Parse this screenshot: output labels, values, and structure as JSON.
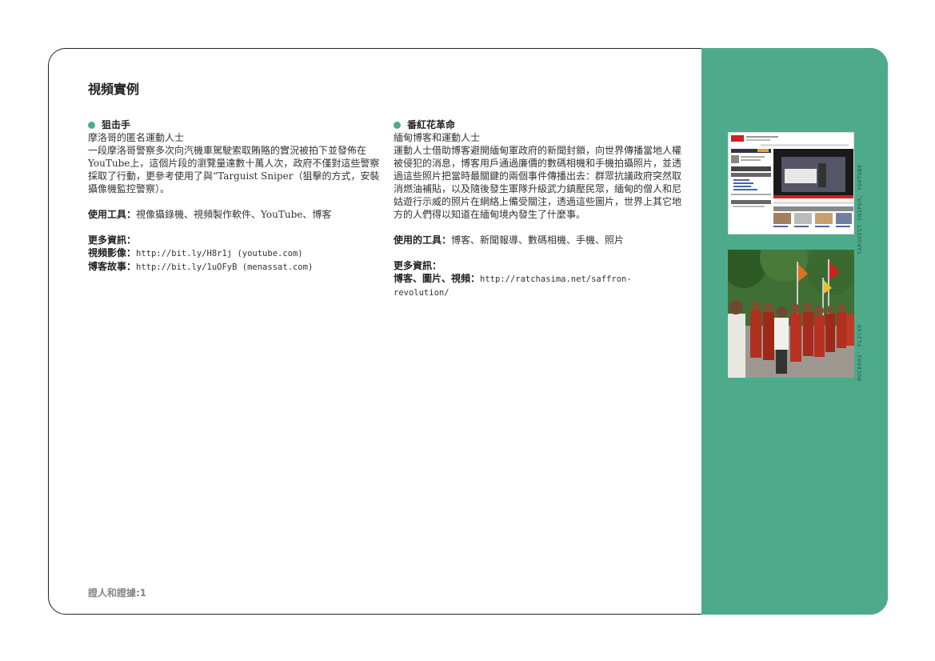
{
  "page": {
    "title": "視頻實例",
    "footer": "證人和證據:1"
  },
  "col1": {
    "heading": "狙击手",
    "subtitle": "摩洛哥的匿名運動人士",
    "body": "一段摩洛哥警察多次向汽機車駕駛索取賄賂的實況被拍下並發佈在YouTube上，這個片段的瀏覽量達數十萬人次，政府不僅對這些警察採取了行動，更參考使用了與“Targuist Sniper（狙擊的方式，安裝攝像機監控警察）。",
    "tools_label": "使用工具：",
    "tools": "視像攝錄機、視頻製作軟件、YouTube、博客",
    "more_label": "更多資訊：",
    "video_label": "視頻影像：",
    "video_url": "http://bit.ly/H8r1j (youtube.com)",
    "blog_label": "博客故事：",
    "blog_url": "http://bit.ly/1uOFyB (menassat.com)"
  },
  "col2": {
    "heading": "番紅花革命",
    "subtitle": "緬甸博客和運動人士",
    "body": "運動人士借助博客避開緬甸軍政府的新聞封鎖，向世界傳播當地人權被侵犯的消息，博客用戶通過廉價的數碼相機和手機拍攝照片，並透過這些照片把當時最關鍵的兩個事件傳播出去：群眾抗議政府突然取消燃油補貼，以及隨後發生軍隊升級武力鎮壓民眾，緬甸的僧人和尼姑遊行示威的照片在網絡上備受關注，透過這些圖片，世界上其它地方的人們得以知道在緬甸境內發生了什麼事。",
    "tools_label": "使用的工具：",
    "tools": "博客、新聞報導、數碼相機、手機、照片",
    "more_label": "更多資訊：",
    "links_label": "博客、圖片、視頻：",
    "links_url": "http://ratchasima.net/saffron-revolution/"
  },
  "images": {
    "img1_caption": "TARGUIST SNIPER, YOUTUBE",
    "img2_caption": "ROCKERS' FLICKR"
  },
  "colors": {
    "accent": "#4dab8c"
  }
}
